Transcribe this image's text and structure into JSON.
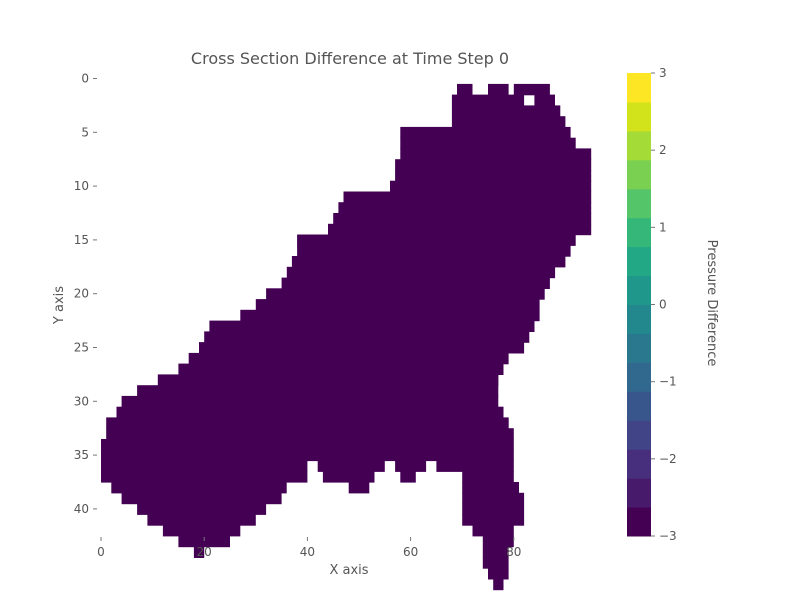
{
  "chart_data": {
    "type": "heatmap",
    "title": "Cross Section Difference at Time Step 0",
    "xlabel": "X axis",
    "ylabel": "Y axis",
    "colorbar_label": "Pressure Difference",
    "xlim": [
      0,
      96
    ],
    "ylim": [
      0,
      42
    ],
    "xticks": [
      0,
      20,
      40,
      60,
      80
    ],
    "yticks": [
      0,
      5,
      10,
      15,
      20,
      25,
      30,
      35,
      40
    ],
    "colorbar_range": [
      -3,
      3
    ],
    "colorbar_ticks": [
      3,
      2,
      1,
      0,
      -1,
      -2,
      -3
    ],
    "colormap": "viridis",
    "mask_value": -3,
    "mask_color": "#440154",
    "grid": false,
    "rows": [
      {
        "y": 1,
        "spans": [
          [
            69,
            72
          ],
          [
            75,
            79
          ],
          [
            80,
            87
          ]
        ]
      },
      {
        "y": 2,
        "spans": [
          [
            68,
            82
          ],
          [
            84,
            88
          ]
        ]
      },
      {
        "y": 3,
        "spans": [
          [
            68,
            89
          ]
        ]
      },
      {
        "y": 4,
        "spans": [
          [
            68,
            90
          ]
        ]
      },
      {
        "y": 5,
        "spans": [
          [
            58,
            91
          ]
        ]
      },
      {
        "y": 6,
        "spans": [
          [
            58,
            92
          ]
        ]
      },
      {
        "y": 7,
        "spans": [
          [
            58,
            95
          ]
        ]
      },
      {
        "y": 8,
        "spans": [
          [
            57,
            95
          ]
        ]
      },
      {
        "y": 9,
        "spans": [
          [
            57,
            95
          ]
        ]
      },
      {
        "y": 10,
        "spans": [
          [
            56,
            95
          ]
        ]
      },
      {
        "y": 11,
        "spans": [
          [
            47,
            95
          ]
        ]
      },
      {
        "y": 12,
        "spans": [
          [
            46,
            95
          ]
        ]
      },
      {
        "y": 13,
        "spans": [
          [
            45,
            95
          ]
        ]
      },
      {
        "y": 14,
        "spans": [
          [
            44,
            95
          ]
        ]
      },
      {
        "y": 15,
        "spans": [
          [
            38,
            92
          ]
        ]
      },
      {
        "y": 16,
        "spans": [
          [
            38,
            91
          ]
        ]
      },
      {
        "y": 17,
        "spans": [
          [
            37,
            90
          ]
        ]
      },
      {
        "y": 18,
        "spans": [
          [
            36,
            88
          ]
        ]
      },
      {
        "y": 19,
        "spans": [
          [
            35,
            87
          ]
        ]
      },
      {
        "y": 20,
        "spans": [
          [
            32,
            86
          ]
        ]
      },
      {
        "y": 21,
        "spans": [
          [
            30,
            85
          ]
        ]
      },
      {
        "y": 22,
        "spans": [
          [
            27,
            85
          ]
        ]
      },
      {
        "y": 23,
        "spans": [
          [
            21,
            84
          ]
        ]
      },
      {
        "y": 24,
        "spans": [
          [
            20,
            83
          ]
        ]
      },
      {
        "y": 25,
        "spans": [
          [
            19,
            82
          ]
        ]
      },
      {
        "y": 26,
        "spans": [
          [
            17,
            79
          ]
        ]
      },
      {
        "y": 27,
        "spans": [
          [
            15,
            78
          ]
        ]
      },
      {
        "y": 28,
        "spans": [
          [
            11,
            77
          ]
        ]
      },
      {
        "y": 29,
        "spans": [
          [
            7,
            77
          ]
        ]
      },
      {
        "y": 30,
        "spans": [
          [
            4,
            77
          ]
        ]
      },
      {
        "y": 31,
        "spans": [
          [
            3,
            78
          ]
        ]
      },
      {
        "y": 32,
        "spans": [
          [
            1,
            79
          ]
        ]
      },
      {
        "y": 33,
        "spans": [
          [
            1,
            80
          ]
        ]
      },
      {
        "y": 34,
        "spans": [
          [
            0,
            80
          ]
        ]
      },
      {
        "y": 35,
        "spans": [
          [
            0,
            80
          ]
        ]
      },
      {
        "y": 36,
        "spans": [
          [
            0,
            40
          ],
          [
            42,
            55
          ],
          [
            57,
            63
          ],
          [
            65,
            80
          ]
        ]
      },
      {
        "y": 37,
        "spans": [
          [
            0,
            40
          ],
          [
            43,
            53
          ],
          [
            58,
            61
          ],
          [
            70,
            80
          ]
        ]
      },
      {
        "y": 38,
        "spans": [
          [
            2,
            36
          ],
          [
            48,
            52
          ],
          [
            70,
            81
          ]
        ]
      },
      {
        "y": 39,
        "spans": [
          [
            4,
            35
          ],
          [
            70,
            82
          ]
        ]
      },
      {
        "y": 40,
        "spans": [
          [
            7,
            32
          ],
          [
            70,
            82
          ]
        ]
      },
      {
        "y": 41,
        "spans": [
          [
            9,
            30
          ],
          [
            70,
            82
          ]
        ]
      },
      {
        "y": 42,
        "spans": [
          [
            12,
            27
          ],
          [
            72,
            80
          ]
        ]
      },
      {
        "y": 43,
        "spans": [
          [
            15,
            25
          ],
          [
            74,
            80
          ]
        ]
      },
      {
        "y": 44,
        "spans": [
          [
            18,
            20
          ],
          [
            74,
            79
          ]
        ]
      },
      {
        "y": 45,
        "spans": [
          [
            74,
            79
          ]
        ]
      },
      {
        "y": 46,
        "spans": [
          [
            75,
            79
          ]
        ]
      },
      {
        "y": 47,
        "spans": [
          [
            76,
            78
          ]
        ]
      }
    ]
  }
}
